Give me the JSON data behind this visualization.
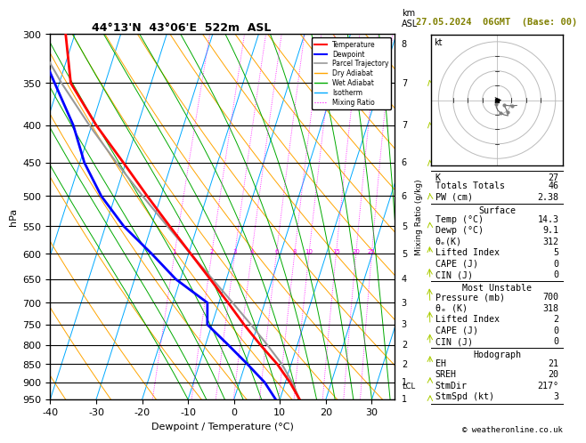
{
  "title": "44°13'N  43°06'E  522m  ASL",
  "date_title": "27.05.2024  06GMT  (Base: 00)",
  "xlabel": "Dewpoint / Temperature (°C)",
  "ylabel_left": "hPa",
  "p_levels": [
    300,
    350,
    400,
    450,
    500,
    550,
    600,
    650,
    700,
    750,
    800,
    850,
    900,
    950
  ],
  "p_min": 300,
  "p_max": 950,
  "t_min": -40,
  "t_max": 35,
  "skew_factor": 22,
  "temp_color": "#FF0000",
  "dewp_color": "#0000FF",
  "parcel_color": "#999999",
  "dry_adiabat_color": "#FFA500",
  "wet_adiabat_color": "#00AA00",
  "isotherm_color": "#00AAFF",
  "mixing_ratio_color": "#FF00FF",
  "background_color": "#FFFFFF",
  "temp_data": {
    "pressure": [
      950,
      900,
      850,
      800,
      750,
      700,
      650,
      600,
      550,
      500,
      450,
      400,
      350,
      300
    ],
    "temperature": [
      14.3,
      11.0,
      7.0,
      2.0,
      -3.0,
      -8.0,
      -13.5,
      -19.5,
      -26.0,
      -33.0,
      -40.5,
      -49.0,
      -57.5,
      -62.0
    ]
  },
  "dewp_data": {
    "pressure": [
      950,
      900,
      850,
      800,
      750,
      700,
      650,
      600,
      550,
      500,
      450,
      400,
      350,
      300
    ],
    "dewpoint": [
      9.1,
      5.5,
      0.5,
      -5.0,
      -11.0,
      -12.5,
      -21.0,
      -28.0,
      -36.0,
      -43.0,
      -49.0,
      -54.0,
      -61.0,
      -69.0
    ]
  },
  "parcel_data": {
    "pressure": [
      950,
      900,
      850,
      800,
      750,
      700,
      650,
      600,
      550,
      500,
      450,
      400,
      350,
      300
    ],
    "temperature": [
      14.3,
      11.5,
      8.0,
      3.5,
      -1.5,
      -7.0,
      -13.0,
      -19.5,
      -26.5,
      -34.0,
      -42.0,
      -50.5,
      -59.5,
      -69.0
    ]
  },
  "lcl_pressure": 912,
  "mixing_ratio_values": [
    1,
    2,
    3,
    4,
    6,
    8,
    10,
    15,
    20,
    25
  ],
  "mixing_ratio_label_pressure": 600,
  "stats": {
    "K": 27,
    "Totals_Totals": 46,
    "PW_cm": 2.38,
    "Surface_Temp": 14.3,
    "Surface_Dewp": 9.1,
    "Surface_theta_e": 312,
    "Surface_LI": 5,
    "Surface_CAPE": 0,
    "Surface_CIN": 0,
    "MU_Pressure": 700,
    "MU_theta_e": 318,
    "MU_LI": 2,
    "MU_CAPE": 0,
    "MU_CIN": 0,
    "EH": 21,
    "SREH": 20,
    "StmDir": 217,
    "StmSpd": 3
  },
  "copyright": "© weatheronline.co.uk",
  "km_labels": {
    "950": "1",
    "900": "1",
    "850": "2",
    "800": "2",
    "750": "3",
    "700": "3",
    "650": "4",
    "600": "5",
    "550": "5",
    "500": "6",
    "450": "6",
    "400": "7",
    "350": "7",
    "310": "8"
  },
  "wind_p": [
    950,
    900,
    850,
    800,
    750,
    700,
    650,
    600,
    550,
    500,
    450,
    400,
    350,
    300
  ],
  "wind_dir": [
    170,
    175,
    185,
    195,
    205,
    215,
    220,
    225,
    230,
    235,
    240,
    245,
    250,
    255
  ],
  "wind_spd": [
    3,
    5,
    7,
    9,
    11,
    13,
    11,
    9,
    7,
    6,
    7,
    9,
    11,
    14
  ]
}
